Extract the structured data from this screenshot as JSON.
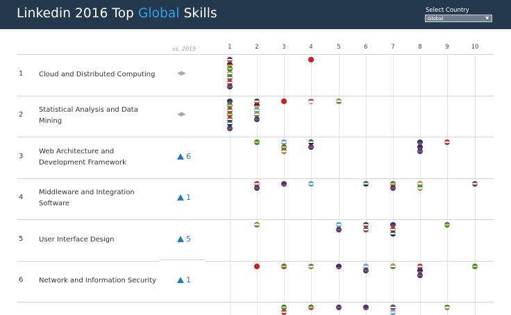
{
  "header": {
    "title_pre": "Linkedin 2016 Top ",
    "title_highlight": "Global",
    "title_post": " Skills"
  },
  "country_select": {
    "label": "Select Country",
    "value": "Global"
  },
  "table": {
    "vs_label": "vs. 2015",
    "columns": [
      "1",
      "2",
      "3",
      "4",
      "5",
      "6",
      "7",
      "8",
      "9",
      "10"
    ],
    "rows": [
      {
        "rank": "1",
        "skill": "Cloud and Distributed Computing",
        "change": "",
        "change_icon": "no-change-arrows-icon",
        "glyph": "◀▶"
      },
      {
        "rank": "2",
        "skill": "Statistical Analysis and Data Mining",
        "change": "",
        "change_icon": "no-change-arrows-icon",
        "glyph": "◀▶"
      },
      {
        "rank": "3",
        "skill": "Web Architecture and Development Framework",
        "change": "6",
        "change_icon": "up-triangle-icon"
      },
      {
        "rank": "4",
        "skill": "Middleware and Integration Software",
        "change": "1",
        "change_icon": "up-triangle-icon"
      },
      {
        "rank": "5",
        "skill": "User Interface Design",
        "change": "5",
        "change_icon": "up-triangle-icon"
      },
      {
        "rank": "6",
        "skill": "Network and Information Security",
        "change": "1",
        "change_icon": "up-triangle-icon"
      }
    ]
  },
  "flag_colors": {
    "fr": [
      "#2b4aa0",
      "#ffffff",
      "#d83a3a"
    ],
    "de": [
      "#222222",
      "#d83a3a",
      "#f4c542"
    ],
    "br": [
      "#2d9d4f",
      "#f4c542",
      "#2d9d4f"
    ],
    "in": [
      "#f49a3a",
      "#ffffff",
      "#2d9d4f"
    ],
    "it": [
      "#2d9d4f",
      "#ffffff",
      "#d83a3a"
    ],
    "ca": [
      "#d83a3a",
      "#ffffff",
      "#d83a3a"
    ],
    "nl": [
      "#d83a3a",
      "#ffffff",
      "#2b4aa0"
    ],
    "gb": [
      "#2b4aa0",
      "#d83a3a",
      "#2b4aa0"
    ],
    "us": [
      "#d83a3a",
      "#ffffff",
      "#2b4aa0"
    ],
    "cn": [
      "#d81f1f",
      "#d81f1f",
      "#d81f1f"
    ],
    "sg": [
      "#d83a3a",
      "#ffffff",
      "#ffffff"
    ],
    "au": [
      "#1f3a8a",
      "#2b4aa0",
      "#d83a3a"
    ],
    "ar": [
      "#6cb4e0",
      "#ffffff",
      "#6cb4e0"
    ],
    "za": [
      "#2d9d4f",
      "#f4c542",
      "#d83a3a"
    ],
    "ae": [
      "#2d9d4f",
      "#ffffff",
      "#222222"
    ],
    "es": [
      "#d83a3a",
      "#f4c542",
      "#d83a3a"
    ],
    "ie": [
      "#2d9d4f",
      "#ffffff",
      "#f49a3a"
    ],
    "se": [
      "#2b6aa8",
      "#f4c542",
      "#2b6aa8"
    ],
    "nz": [
      "#1f3a8a",
      "#1f3a8a",
      "#d83a3a"
    ]
  },
  "flags": [
    {
      "row": 0,
      "col": 1,
      "codes": [
        "fr",
        "de",
        "br",
        "in",
        "it",
        "ca",
        "gb"
      ]
    },
    {
      "row": 0,
      "col": 4,
      "codes": [
        "cn"
      ]
    },
    {
      "row": 1,
      "col": 1,
      "codes": [
        "au",
        "br",
        "ca",
        "za",
        "nl",
        "ae",
        "gb"
      ]
    },
    {
      "row": 1,
      "col": 2,
      "codes": [
        "fr",
        "de",
        "ar",
        "in",
        "gb"
      ]
    },
    {
      "row": 1,
      "col": 3,
      "codes": [
        "cn"
      ]
    },
    {
      "row": 1,
      "col": 4,
      "codes": [
        "sg"
      ]
    },
    {
      "row": 1,
      "col": 5,
      "codes": [
        "in"
      ]
    },
    {
      "row": 2,
      "col": 2,
      "codes": [
        "br"
      ]
    },
    {
      "row": 2,
      "col": 3,
      "codes": [
        "ar",
        "za",
        "ie"
      ]
    },
    {
      "row": 2,
      "col": 4,
      "codes": [
        "ae",
        "gb"
      ]
    },
    {
      "row": 2,
      "col": 8,
      "codes": [
        "au",
        "nz",
        "gb"
      ]
    },
    {
      "row": 2,
      "col": 9,
      "codes": [
        "ca"
      ]
    },
    {
      "row": 3,
      "col": 2,
      "codes": [
        "ca",
        "gb"
      ]
    },
    {
      "row": 3,
      "col": 3,
      "codes": [
        "au"
      ]
    },
    {
      "row": 3,
      "col": 4,
      "codes": [
        "ar"
      ]
    },
    {
      "row": 3,
      "col": 6,
      "codes": [
        "ae"
      ]
    },
    {
      "row": 3,
      "col": 7,
      "codes": [
        "za",
        "gb"
      ]
    },
    {
      "row": 3,
      "col": 8,
      "codes": [
        "in",
        "ie"
      ]
    },
    {
      "row": 3,
      "col": 10,
      "codes": [
        "nl"
      ]
    },
    {
      "row": 4,
      "col": 2,
      "codes": [
        "in"
      ]
    },
    {
      "row": 4,
      "col": 5,
      "codes": [
        "ar",
        "gb"
      ]
    },
    {
      "row": 4,
      "col": 6,
      "codes": [
        "fr",
        "it"
      ]
    },
    {
      "row": 4,
      "col": 7,
      "codes": [
        "au",
        "ca",
        "ae"
      ]
    },
    {
      "row": 4,
      "col": 9,
      "codes": [
        "br"
      ]
    },
    {
      "row": 5,
      "col": 2,
      "codes": [
        "cn"
      ]
    },
    {
      "row": 5,
      "col": 3,
      "codes": [
        "za"
      ]
    },
    {
      "row": 5,
      "col": 4,
      "codes": [
        "ie"
      ]
    },
    {
      "row": 5,
      "col": 5,
      "codes": [
        "nz"
      ]
    },
    {
      "row": 5,
      "col": 6,
      "codes": [
        "ar",
        "gb"
      ]
    },
    {
      "row": 5,
      "col": 7,
      "codes": [
        "in"
      ]
    },
    {
      "row": 5,
      "col": 8,
      "codes": [
        "ca",
        "nz",
        "gb"
      ]
    },
    {
      "row": 5,
      "col": 10,
      "codes": [
        "br"
      ]
    },
    {
      "row": 6,
      "col": 3,
      "codes": [
        "br",
        "ca"
      ]
    },
    {
      "row": 6,
      "col": 4,
      "codes": [
        "za"
      ]
    },
    {
      "row": 6,
      "col": 5,
      "codes": [
        "gb"
      ]
    },
    {
      "row": 6,
      "col": 6,
      "codes": [
        "au"
      ]
    },
    {
      "row": 6,
      "col": 7,
      "codes": [
        "fr",
        "ar"
      ]
    },
    {
      "row": 6,
      "col": 9,
      "codes": [
        "ie"
      ]
    }
  ]
}
